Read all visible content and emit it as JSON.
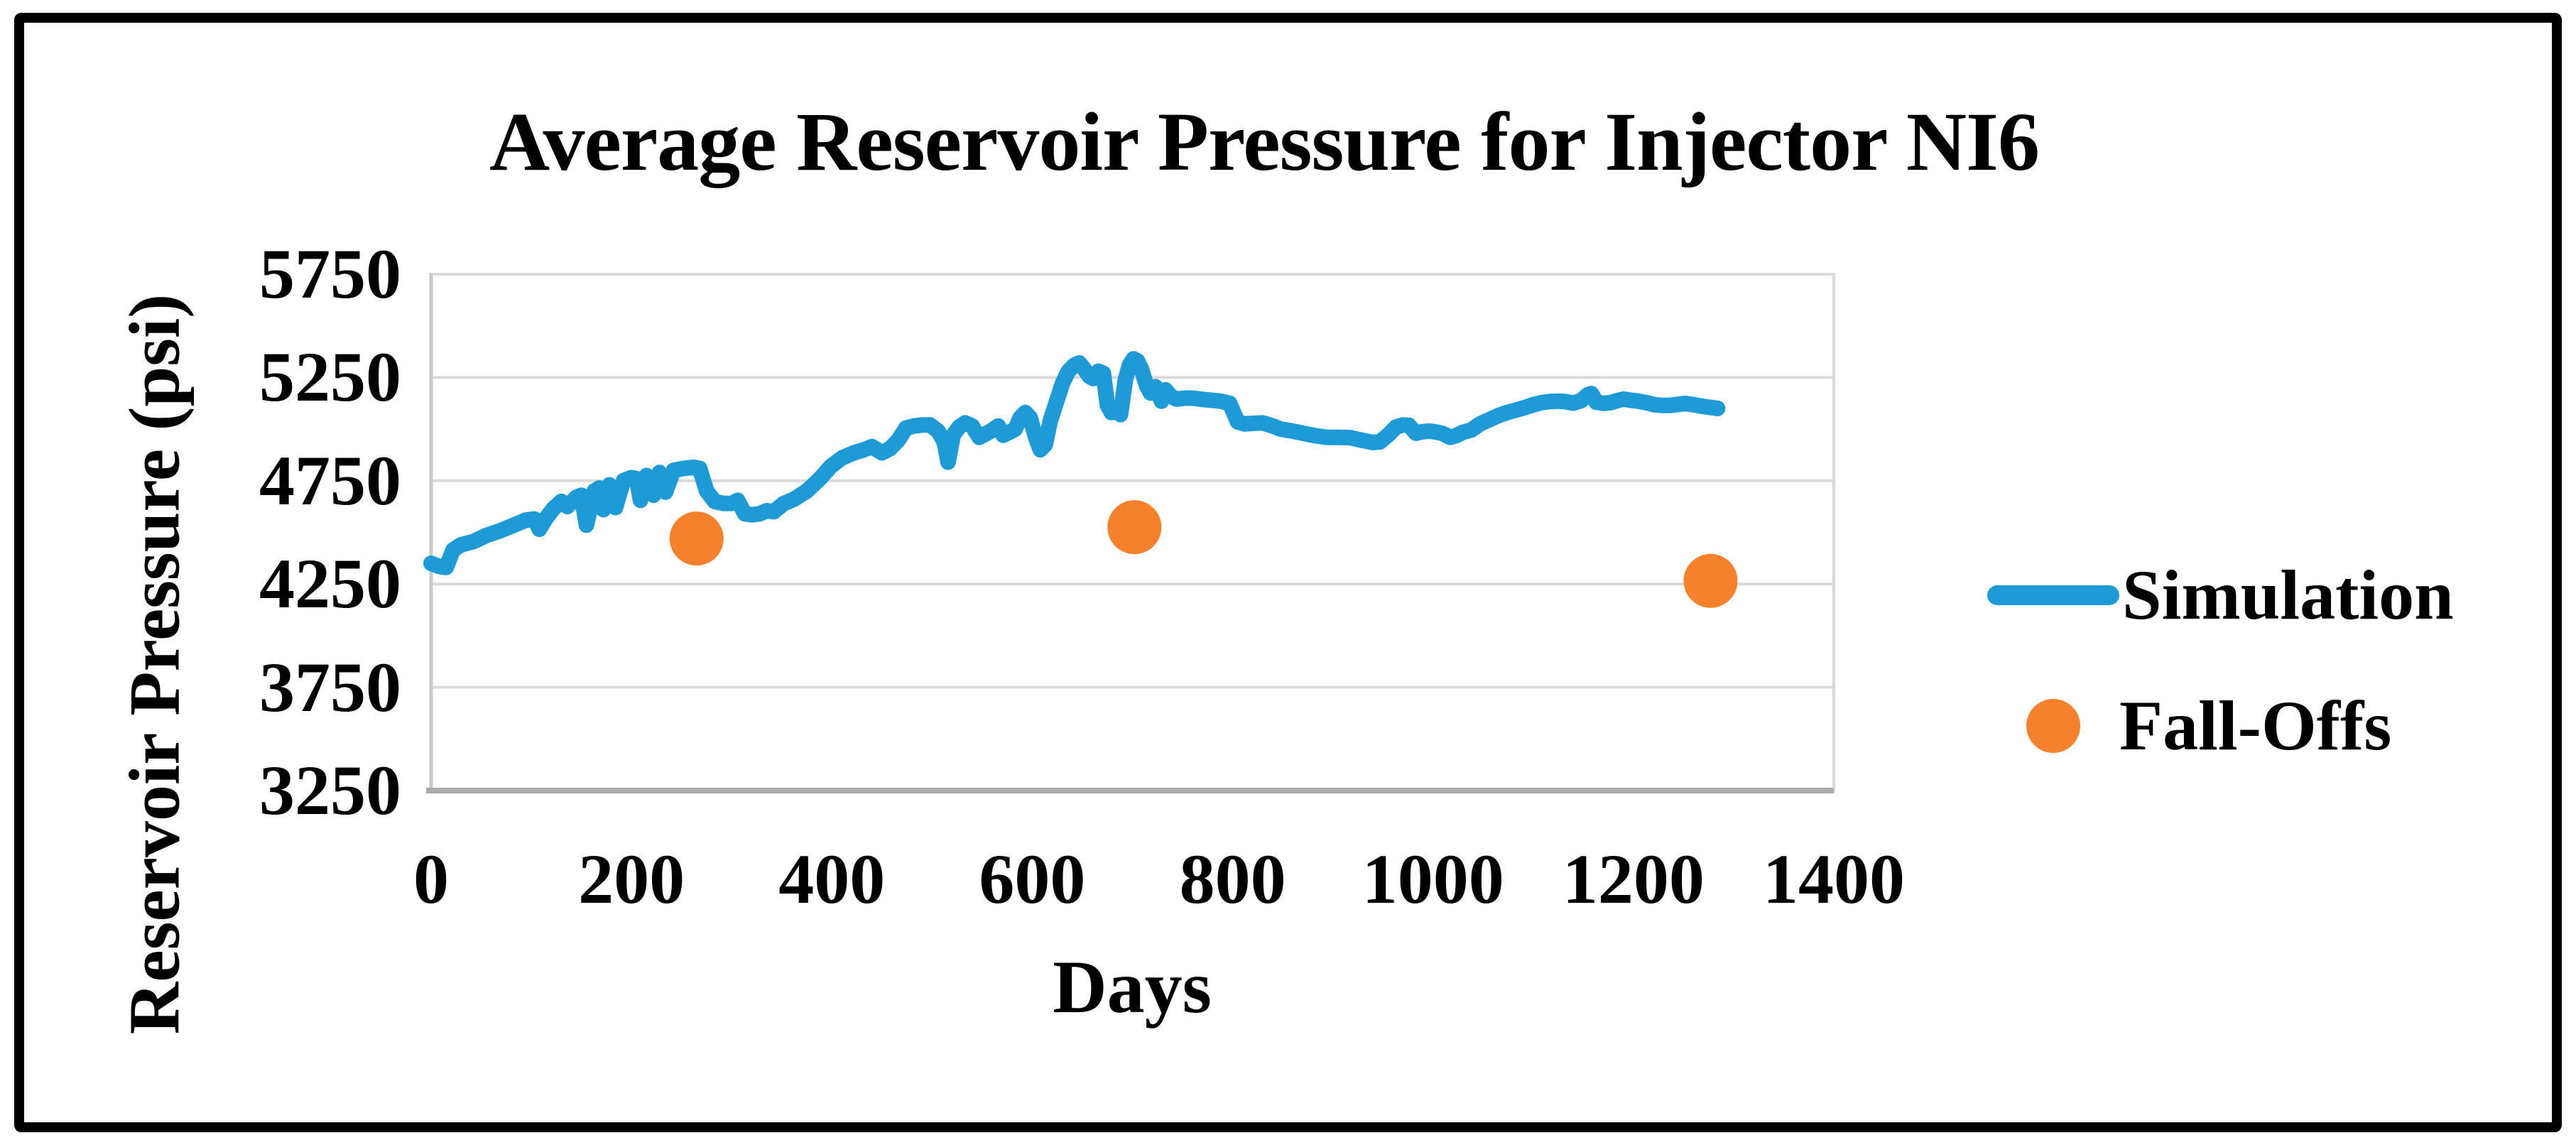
{
  "chart_data": {
    "type": "line",
    "title": "Average Reservoir Pressure for Injector NI6",
    "xlabel": "Days",
    "ylabel": "Reservoir Pressure (psi)",
    "xlim": [
      0,
      1400
    ],
    "ylim": [
      3250,
      5750
    ],
    "x_ticks": [
      0,
      200,
      400,
      600,
      800,
      1000,
      1200,
      1400
    ],
    "y_ticks": [
      5750,
      5250,
      4750,
      4250,
      3750,
      3250
    ],
    "grid": "horizontal-only",
    "legend_position": "right-middle",
    "colors": {
      "simulation": "#1E9BD7",
      "fall_offs": "#F6812C",
      "gridline": "#D9D9D9",
      "axis_line": "#ABABAB",
      "plot_border_left": "#C9C9C9",
      "plot_border_right": "#D9D9D9",
      "text": "#000000",
      "frame_border": "#000000",
      "background": "#FFFFFF"
    },
    "series": [
      {
        "name": "Simulation",
        "type": "line",
        "color_key": "simulation",
        "points": [
          [
            0,
            4350
          ],
          [
            8,
            4335
          ],
          [
            15,
            4330
          ],
          [
            22,
            4415
          ],
          [
            30,
            4440
          ],
          [
            42,
            4455
          ],
          [
            55,
            4485
          ],
          [
            70,
            4510
          ],
          [
            85,
            4540
          ],
          [
            95,
            4560
          ],
          [
            103,
            4565
          ],
          [
            108,
            4515
          ],
          [
            115,
            4570
          ],
          [
            122,
            4615
          ],
          [
            130,
            4650
          ],
          [
            136,
            4625
          ],
          [
            145,
            4670
          ],
          [
            150,
            4680
          ],
          [
            155,
            4535
          ],
          [
            163,
            4700
          ],
          [
            168,
            4715
          ],
          [
            172,
            4610
          ],
          [
            178,
            4730
          ],
          [
            184,
            4620
          ],
          [
            192,
            4750
          ],
          [
            200,
            4765
          ],
          [
            205,
            4760
          ],
          [
            209,
            4655
          ],
          [
            215,
            4775
          ],
          [
            222,
            4680
          ],
          [
            228,
            4790
          ],
          [
            234,
            4695
          ],
          [
            242,
            4800
          ],
          [
            252,
            4810
          ],
          [
            262,
            4815
          ],
          [
            268,
            4810
          ],
          [
            275,
            4700
          ],
          [
            283,
            4650
          ],
          [
            292,
            4640
          ],
          [
            300,
            4640
          ],
          [
            306,
            4655
          ],
          [
            313,
            4590
          ],
          [
            320,
            4585
          ],
          [
            328,
            4590
          ],
          [
            335,
            4605
          ],
          [
            342,
            4600
          ],
          [
            352,
            4640
          ],
          [
            362,
            4660
          ],
          [
            375,
            4700
          ],
          [
            388,
            4760
          ],
          [
            399,
            4820
          ],
          [
            410,
            4860
          ],
          [
            422,
            4885
          ],
          [
            432,
            4900
          ],
          [
            440,
            4915
          ],
          [
            450,
            4885
          ],
          [
            458,
            4905
          ],
          [
            466,
            4945
          ],
          [
            474,
            5005
          ],
          [
            482,
            5015
          ],
          [
            490,
            5020
          ],
          [
            498,
            5020
          ],
          [
            506,
            4990
          ],
          [
            512,
            4940
          ],
          [
            516,
            4840
          ],
          [
            521,
            4970
          ],
          [
            527,
            5010
          ],
          [
            533,
            5030
          ],
          [
            540,
            5015
          ],
          [
            547,
            4960
          ],
          [
            553,
            4975
          ],
          [
            560,
            4995
          ],
          [
            566,
            5015
          ],
          [
            571,
            4970
          ],
          [
            577,
            4985
          ],
          [
            583,
            5000
          ],
          [
            588,
            5055
          ],
          [
            593,
            5080
          ],
          [
            598,
            5055
          ],
          [
            603,
            4965
          ],
          [
            608,
            4900
          ],
          [
            613,
            4925
          ],
          [
            618,
            5040
          ],
          [
            624,
            5130
          ],
          [
            630,
            5220
          ],
          [
            636,
            5280
          ],
          [
            642,
            5310
          ],
          [
            647,
            5320
          ],
          [
            652,
            5290
          ],
          [
            657,
            5255
          ],
          [
            661,
            5245
          ],
          [
            666,
            5280
          ],
          [
            671,
            5270
          ],
          [
            675,
            5115
          ],
          [
            679,
            5080
          ],
          [
            683,
            5090
          ],
          [
            688,
            5070
          ],
          [
            693,
            5240
          ],
          [
            697,
            5310
          ],
          [
            701,
            5340
          ],
          [
            705,
            5330
          ],
          [
            709,
            5290
          ],
          [
            714,
            5210
          ],
          [
            718,
            5175
          ],
          [
            723,
            5205
          ],
          [
            729,
            5135
          ],
          [
            733,
            5190
          ],
          [
            738,
            5160
          ],
          [
            744,
            5145
          ],
          [
            752,
            5150
          ],
          [
            760,
            5150
          ],
          [
            768,
            5145
          ],
          [
            778,
            5140
          ],
          [
            788,
            5135
          ],
          [
            797,
            5125
          ],
          [
            801,
            5080
          ],
          [
            805,
            5035
          ],
          [
            812,
            5025
          ],
          [
            820,
            5028
          ],
          [
            830,
            5030
          ],
          [
            840,
            5015
          ],
          [
            848,
            5000
          ],
          [
            858,
            4992
          ],
          [
            870,
            4980
          ],
          [
            882,
            4968
          ],
          [
            894,
            4960
          ],
          [
            906,
            4960
          ],
          [
            918,
            4958
          ],
          [
            930,
            4945
          ],
          [
            940,
            4935
          ],
          [
            947,
            4938
          ],
          [
            955,
            4970
          ],
          [
            963,
            5010
          ],
          [
            970,
            5020
          ],
          [
            976,
            5018
          ],
          [
            983,
            4980
          ],
          [
            990,
            4988
          ],
          [
            997,
            4990
          ],
          [
            1004,
            4985
          ],
          [
            1010,
            4978
          ],
          [
            1017,
            4960
          ],
          [
            1023,
            4968
          ],
          [
            1030,
            4985
          ],
          [
            1038,
            4995
          ],
          [
            1047,
            5025
          ],
          [
            1056,
            5045
          ],
          [
            1065,
            5065
          ],
          [
            1074,
            5080
          ],
          [
            1083,
            5092
          ],
          [
            1092,
            5105
          ],
          [
            1100,
            5118
          ],
          [
            1108,
            5128
          ],
          [
            1116,
            5133
          ],
          [
            1124,
            5135
          ],
          [
            1132,
            5133
          ],
          [
            1140,
            5126
          ],
          [
            1148,
            5138
          ],
          [
            1154,
            5165
          ],
          [
            1158,
            5172
          ],
          [
            1163,
            5130
          ],
          [
            1170,
            5125
          ],
          [
            1177,
            5128
          ],
          [
            1184,
            5138
          ],
          [
            1190,
            5145
          ],
          [
            1197,
            5140
          ],
          [
            1205,
            5135
          ],
          [
            1213,
            5128
          ],
          [
            1221,
            5118
          ],
          [
            1229,
            5115
          ],
          [
            1237,
            5115
          ],
          [
            1245,
            5120
          ],
          [
            1252,
            5124
          ],
          [
            1260,
            5118
          ],
          [
            1269,
            5110
          ],
          [
            1277,
            5105
          ],
          [
            1284,
            5100
          ]
        ]
      },
      {
        "name": "Fall-Offs",
        "type": "scatter",
        "color_key": "fall_offs",
        "points": [
          [
            265,
            4470
          ],
          [
            702,
            4525
          ],
          [
            1277,
            4265
          ]
        ]
      }
    ]
  }
}
